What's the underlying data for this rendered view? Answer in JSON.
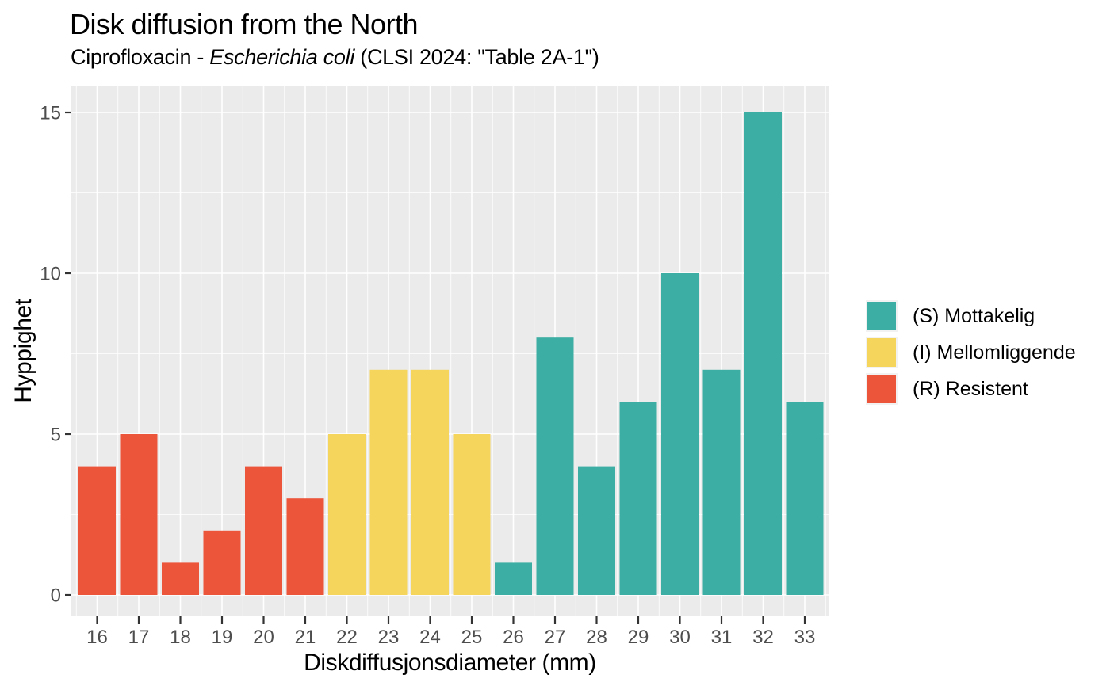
{
  "header": {
    "title": "Disk diffusion from the North",
    "subtitle_prefix": "Ciprofloxacin - ",
    "subtitle_italic": "Escherichia coli",
    "subtitle_suffix": " (CLSI 2024: \"Table 2A-1\")"
  },
  "chart_data": {
    "type": "bar",
    "title": "Disk diffusion from the North",
    "subtitle": "Ciprofloxacin - Escherichia coli (CLSI 2024: \"Table 2A-1\")",
    "xlabel": "Diskdiffusjonsdiameter (mm)",
    "ylabel": "Hyppighet",
    "categories": [
      16,
      17,
      18,
      19,
      20,
      21,
      22,
      23,
      24,
      25,
      26,
      27,
      28,
      29,
      30,
      31,
      32,
      33
    ],
    "values": [
      4,
      5,
      1,
      2,
      4,
      3,
      5,
      7,
      7,
      5,
      1,
      8,
      4,
      6,
      10,
      7,
      15,
      6
    ],
    "groups": [
      "R",
      "R",
      "R",
      "R",
      "R",
      "R",
      "I",
      "I",
      "I",
      "I",
      "S",
      "S",
      "S",
      "S",
      "S",
      "S",
      "S",
      "S"
    ],
    "y_ticks": [
      0,
      5,
      10,
      15
    ],
    "y_minor_ticks": [
      2.5,
      7.5,
      12.5
    ],
    "ylim": [
      0,
      15
    ],
    "grid": true,
    "legend_position": "right",
    "colors": {
      "S": "#3CAEA3",
      "I": "#F6D55C",
      "R": "#ED553B"
    },
    "panel_background": "#EBEBEB",
    "grid_color": "#FFFFFF",
    "tick_label_color": "#4d4d4d",
    "tick_mark_color": "#333333"
  },
  "legend": {
    "items": [
      {
        "key": "S",
        "label": "(S) Mottakelig"
      },
      {
        "key": "I",
        "label": "(I) Mellomliggende"
      },
      {
        "key": "R",
        "label": "(R) Resistent"
      }
    ]
  }
}
